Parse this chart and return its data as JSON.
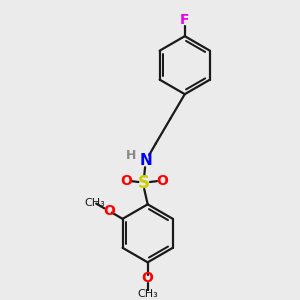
{
  "bg_color": "#ebebeb",
  "bond_color": "#1a1a1a",
  "bond_width": 1.6,
  "atom_colors": {
    "F": "#ee00ee",
    "N": "#0000ff",
    "S": "#cccc00",
    "O": "#ff0000",
    "H": "#888888",
    "C": "#1a1a1a"
  },
  "font_size": 9
}
